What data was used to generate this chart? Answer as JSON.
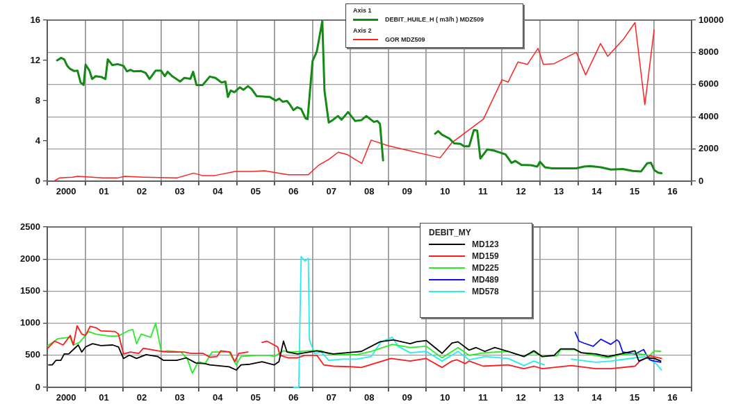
{
  "chart_data": [
    {
      "type": "line",
      "annotations": [
        "Axis 1",
        "Axis 2"
      ],
      "legend": "top",
      "grid": true,
      "xlim": [
        "2000-01-01",
        "2017-01-01"
      ],
      "xticks": [
        {
          "value": "2000-01-01",
          "label": null
        },
        {
          "value": "2000-07-01",
          "label": "2000"
        },
        {
          "value": "2001-01-01",
          "label": null
        },
        {
          "value": "2001-07-01",
          "label": "01"
        },
        {
          "value": "2002-01-01",
          "label": null
        },
        {
          "value": "2002-07-01",
          "label": "02"
        },
        {
          "value": "2003-01-01",
          "label": null
        },
        {
          "value": "2003-07-01",
          "label": "03"
        },
        {
          "value": "2004-01-01",
          "label": null
        },
        {
          "value": "2004-07-01",
          "label": "04"
        },
        {
          "value": "2005-01-01",
          "label": null
        },
        {
          "value": "2005-07-01",
          "label": "05"
        },
        {
          "value": "2006-01-01",
          "label": null
        },
        {
          "value": "2006-07-01",
          "label": "06"
        },
        {
          "value": "2007-01-01",
          "label": null
        },
        {
          "value": "2007-07-01",
          "label": "07"
        },
        {
          "value": "2008-01-01",
          "label": null
        },
        {
          "value": "2008-07-01",
          "label": "08"
        },
        {
          "value": "2009-01-01",
          "label": null
        },
        {
          "value": "2009-07-01",
          "label": "09"
        },
        {
          "value": "2010-01-01",
          "label": null
        },
        {
          "value": "2010-07-01",
          "label": "10"
        },
        {
          "value": "2011-01-01",
          "label": null
        },
        {
          "value": "2011-07-01",
          "label": "11"
        },
        {
          "value": "2012-01-01",
          "label": null
        },
        {
          "value": "2012-07-01",
          "label": "12"
        },
        {
          "value": "2013-01-01",
          "label": null
        },
        {
          "value": "2013-07-01",
          "label": "13"
        },
        {
          "value": "2014-01-01",
          "label": null
        },
        {
          "value": "2014-07-01",
          "label": "14"
        },
        {
          "value": "2015-01-01",
          "label": null
        },
        {
          "value": "2015-07-01",
          "label": "15"
        },
        {
          "value": "2016-01-01",
          "label": null
        },
        {
          "value": "2016-07-01",
          "label": "16"
        },
        {
          "value": "2017-01-01",
          "label": null
        }
      ],
      "ylim": [
        0,
        16
      ],
      "yticks": [
        0,
        4,
        8,
        12,
        16
      ],
      "y2lim": [
        0,
        10000
      ],
      "y2ticks": [
        0,
        2000,
        4000,
        6000,
        8000,
        10000
      ],
      "series": [
        {
          "name": "DEBIT_HUILE_H ( m3/h ) MDZ509",
          "color": "#138a13",
          "x": [
            "2000-04-05",
            "2000-05-14",
            "2000-06-13",
            "2000-07-12",
            "2000-08-03",
            "2000-09-17",
            "2000-10-19",
            "2000-11-18",
            "2000-12-17",
            "2001-01-05",
            "2001-02-11",
            "2001-03-09",
            "2001-04-12",
            "2001-06-09",
            "2001-07-15",
            "2001-08-07",
            "2001-09-20",
            "2001-11-11",
            "2002-01-05",
            "2002-02-07",
            "2002-03-13",
            "2002-04-15",
            "2002-06-24",
            "2002-08-07",
            "2002-09-13",
            "2002-11-11",
            "2003-01-01",
            "2003-02-07",
            "2003-03-06",
            "2003-04-19",
            "2003-07-05",
            "2003-08-14",
            "2003-10-12",
            "2003-11-07",
            "2003-12-09",
            "2004-02-07",
            "2004-04-15",
            "2004-06-09",
            "2004-08-07",
            "2004-09-13",
            "2004-10-08",
            "2004-11-03",
            "2004-12-09",
            "2005-01-30",
            "2005-03-06",
            "2005-04-19",
            "2005-05-25",
            "2005-07-12",
            "2005-09-06",
            "2005-11-14",
            "2006-01-12",
            "2006-02-14",
            "2006-03-20",
            "2006-04-30",
            "2006-05-29",
            "2006-07-01",
            "2006-08-07",
            "2006-09-13",
            "2006-10-26",
            "2006-11-14",
            "2007-01-01",
            "2007-02-11",
            "2007-04-05",
            "2007-04-26",
            "2007-06-06",
            "2007-07-19",
            "2007-09-02",
            "2007-10-08",
            "2007-12-09",
            "2008-02-14",
            "2008-04-15",
            "2008-06-02",
            "2008-08-14",
            "2008-09-17",
            "2008-10-12",
            "2008-11-11",
            "2009-07-01",
            "2010-03-27",
            "2010-04-26",
            "2010-06-02",
            "2010-08-11",
            "2010-09-27",
            "2010-11-25",
            "2011-01-01",
            "2011-02-18",
            "2011-04-05",
            "2011-05-07",
            "2011-06-06",
            "2011-08-11",
            "2011-10-19",
            "2012-02-03",
            "2012-04-01",
            "2012-05-07",
            "2012-07-05",
            "2012-10-08",
            "2012-12-06",
            "2013-01-01",
            "2013-02-18",
            "2013-04-26",
            "2013-12-17",
            "2014-02-28",
            "2014-04-26",
            "2014-08-11",
            "2014-11-14",
            "2015-03-09",
            "2015-06-13",
            "2015-09-02",
            "2015-10-30",
            "2015-12-06",
            "2016-01-08",
            "2016-02-14",
            "2016-03-17"
          ],
          "values": [
            12.0,
            12.25,
            12.1,
            11.46,
            11.2,
            10.94,
            10.99,
            9.8,
            9.56,
            11.58,
            10.99,
            10.15,
            10.43,
            10.34,
            10.15,
            12.1,
            11.53,
            11.63,
            11.46,
            10.91,
            11.06,
            10.91,
            10.94,
            10.75,
            10.15,
            10.99,
            10.99,
            10.43,
            10.87,
            10.43,
            9.9,
            10.26,
            10.18,
            10.87,
            9.56,
            9.56,
            10.39,
            10.26,
            9.8,
            9.9,
            8.37,
            9.0,
            8.84,
            9.32,
            9.08,
            9.44,
            9.15,
            8.44,
            8.41,
            8.37,
            8.01,
            8.2,
            7.89,
            7.97,
            7.59,
            7.06,
            7.34,
            7.18,
            6.23,
            6.16,
            11.94,
            12.89,
            15.91,
            8.97,
            5.82,
            6.11,
            6.47,
            6.11,
            6.87,
            5.99,
            6.06,
            6.47,
            5.89,
            5.98,
            5.69,
            2.06,
            null,
            4.72,
            4.97,
            4.61,
            4.24,
            3.76,
            3.7,
            3.46,
            3.46,
            5.09,
            5.02,
            2.25,
            3.15,
            3.03,
            2.66,
            1.82,
            2.01,
            1.62,
            1.58,
            1.45,
            1.93,
            1.38,
            1.28,
            1.28,
            1.45,
            1.5,
            1.38,
            1.16,
            1.21,
            1.02,
            0.97,
            1.77,
            1.82,
            1.09,
            0.85,
            0.8
          ]
        },
        {
          "name": "GOR MDZ509",
          "color": "#ff2020",
          "axis": "y2",
          "x": [
            "2000-03-06",
            "2000-04-26",
            "2000-09-02",
            "2000-10-19",
            "2001-06-24",
            "2001-11-07",
            "2002-01-19",
            "2002-07-15",
            "2003-06-02",
            "2003-11-11",
            "2004-02-03",
            "2004-06-02",
            "2004-12-17",
            "2005-06-02",
            "2005-09-24",
            "2006-05-11",
            "2006-11-21",
            "2007-03-02",
            "2007-06-06",
            "2007-09-06",
            "2007-12-02",
            "2008-04-19",
            "2008-07-19",
            "2009-01-01",
            "2010-05-14",
            "2010-09-06",
            "2011-07-05",
            "2012-01-01",
            "2012-02-28",
            "2012-06-02",
            "2012-09-02",
            "2012-12-13",
            "2013-02-03",
            "2013-05-18",
            "2013-12-17",
            "2014-03-17",
            "2014-08-07",
            "2014-10-15",
            "2015-03-20",
            "2015-07-05",
            "2015-10-08",
            "2016-01-05"
          ],
          "values": [
            0,
            200,
            250,
            300,
            200,
            200,
            300,
            250,
            200,
            500,
            350,
            350,
            600,
            600,
            650,
            400,
            400,
            1000,
            1350,
            1800,
            1650,
            1100,
            2550,
            2200,
            1450,
            2400,
            3850,
            6300,
            6150,
            7400,
            7250,
            8250,
            7250,
            7300,
            8000,
            6600,
            8550,
            7750,
            8850,
            9850,
            4750,
            9400
          ]
        }
      ]
    },
    {
      "type": "line",
      "legend": "top",
      "legend_title": "DEBIT_MY",
      "grid": true,
      "xlim": [
        "2000-01-01",
        "2017-01-01"
      ],
      "xticks": [
        {
          "value": "2000-01-01",
          "label": null
        },
        {
          "value": "2000-07-01",
          "label": "2000"
        },
        {
          "value": "2001-01-01",
          "label": null
        },
        {
          "value": "2001-07-01",
          "label": "01"
        },
        {
          "value": "2002-01-01",
          "label": null
        },
        {
          "value": "2002-07-01",
          "label": "02"
        },
        {
          "value": "2003-01-01",
          "label": null
        },
        {
          "value": "2003-07-01",
          "label": "03"
        },
        {
          "value": "2004-01-01",
          "label": null
        },
        {
          "value": "2004-07-01",
          "label": "04"
        },
        {
          "value": "2005-01-01",
          "label": null
        },
        {
          "value": "2005-07-01",
          "label": "05"
        },
        {
          "value": "2006-01-01",
          "label": null
        },
        {
          "value": "2006-07-01",
          "label": "06"
        },
        {
          "value": "2007-01-01",
          "label": null
        },
        {
          "value": "2007-07-01",
          "label": "07"
        },
        {
          "value": "2008-01-01",
          "label": null
        },
        {
          "value": "2008-07-01",
          "label": "08"
        },
        {
          "value": "2009-01-01",
          "label": null
        },
        {
          "value": "2009-07-01",
          "label": "09"
        },
        {
          "value": "2010-01-01",
          "label": null
        },
        {
          "value": "2010-07-01",
          "label": "10"
        },
        {
          "value": "2011-01-01",
          "label": null
        },
        {
          "value": "2011-07-01",
          "label": "11"
        },
        {
          "value": "2012-01-01",
          "label": null
        },
        {
          "value": "2012-07-01",
          "label": "12"
        },
        {
          "value": "2013-01-01",
          "label": null
        },
        {
          "value": "2013-07-01",
          "label": "13"
        },
        {
          "value": "2014-01-01",
          "label": null
        },
        {
          "value": "2014-07-01",
          "label": "14"
        },
        {
          "value": "2015-01-01",
          "label": null
        },
        {
          "value": "2015-07-01",
          "label": "15"
        },
        {
          "value": "2016-01-01",
          "label": null
        },
        {
          "value": "2016-07-01",
          "label": "16"
        },
        {
          "value": "2017-01-01",
          "label": null
        }
      ],
      "ylim": [
        0,
        2500
      ],
      "yticks": [
        0,
        500,
        1000,
        1500,
        2000,
        2500
      ],
      "series": [
        {
          "name": "MD123",
          "color": "#000000",
          "x": [
            "2000-01-15",
            "2000-02-18",
            "2000-03-24",
            "2000-05-11",
            "2000-06-13",
            "2000-07-26",
            "2000-09-09",
            "2000-10-26",
            "2000-11-29",
            "2001-01-05",
            "2001-03-13",
            "2001-06-02",
            "2001-09-24",
            "2001-11-18",
            "2002-01-05",
            "2002-03-02",
            "2002-05-11",
            "2002-08-11",
            "2002-12-02",
            "2003-01-26",
            "2003-06-02",
            "2003-09-02",
            "2003-12-02",
            "2004-03-02",
            "2004-04-15",
            "2004-10-19",
            "2004-12-27",
            "2005-02-11",
            "2005-05-07",
            "2005-09-02",
            "2005-12-27",
            "2006-02-11",
            "2006-03-27",
            "2006-04-30",
            "2006-08-11",
            "2007-02-11",
            "2007-07-19",
            "2008-04-15",
            "2008-10-12",
            "2009-02-18",
            "2009-07-30",
            "2009-09-27",
            "2010-01-01",
            "2010-06-02",
            "2010-09-06",
            "2010-11-03",
            "2011-02-18",
            "2011-04-26",
            "2011-07-19",
            "2011-10-23",
            "2012-02-28",
            "2012-07-30",
            "2012-11-03",
            "2013-01-23",
            "2013-05-18",
            "2013-07-19",
            "2013-11-25",
            "2014-02-03",
            "2014-06-24",
            "2014-10-19",
            "2015-02-14",
            "2015-07-05",
            "2015-08-11",
            "2015-10-30",
            "2016-01-08",
            "2016-03-09"
          ],
          "values": [
            350,
            350,
            420,
            420,
            520,
            520,
            590,
            660,
            550,
            630,
            680,
            650,
            660,
            630,
            450,
            500,
            450,
            510,
            480,
            420,
            420,
            460,
            380,
            370,
            350,
            320,
            270,
            350,
            360,
            400,
            350,
            400,
            720,
            550,
            520,
            570,
            520,
            560,
            710,
            740,
            680,
            710,
            730,
            530,
            690,
            710,
            580,
            620,
            560,
            620,
            560,
            480,
            570,
            480,
            500,
            600,
            600,
            540,
            520,
            480,
            520,
            570,
            410,
            460,
            450,
            410
          ]
        },
        {
          "name": "MD159",
          "color": "#ff1a1a",
          "x": [
            "2000-01-05",
            "2000-03-13",
            "2000-06-02",
            "2000-08-11",
            "2000-09-09",
            "2000-10-15",
            "2000-11-29",
            "2001-01-05",
            "2001-02-18",
            "2001-04-15",
            "2001-06-02",
            "2001-10-15",
            "2001-11-18",
            "2002-01-05",
            "2002-03-13",
            "2002-06-02",
            "2002-07-15",
            "2002-12-02",
            "2003-03-02",
            "2003-08-11",
            "2003-10-19",
            "2004-02-11",
            "2004-04-15",
            "2004-06-24",
            "2004-07-30",
            "2004-10-30",
            "2004-12-13",
            "2005-01-19",
            "2005-04-19",
            "2005-07-01",
            "2005-09-02",
            "2005-10-19",
            "2006-01-30",
            "2006-02-21",
            "2006-05-11",
            "2006-08-11",
            "2006-10-19",
            "2007-02-11",
            "2007-04-19",
            "2007-07-19",
            "2008-01-19",
            "2008-04-15",
            "2008-08-14",
            "2009-01-26",
            "2009-07-30",
            "2010-01-01",
            "2010-06-02",
            "2010-09-06",
            "2010-10-23",
            "2011-01-12",
            "2011-02-18",
            "2011-07-05",
            "2012-02-28",
            "2012-07-30",
            "2012-11-03",
            "2013-01-23",
            "2013-10-30",
            "2014-06-24",
            "2014-11-14",
            "2015-07-05",
            "2015-08-21",
            "2015-11-25",
            "2016-03-17"
          ],
          "values": [
            610,
            720,
            660,
            810,
            660,
            960,
            830,
            810,
            950,
            930,
            880,
            870,
            830,
            520,
            550,
            530,
            610,
            570,
            550,
            550,
            530,
            530,
            470,
            480,
            570,
            550,
            400,
            530,
            550,
            null,
            700,
            720,
            630,
            500,
            460,
            460,
            500,
            500,
            350,
            330,
            320,
            310,
            370,
            450,
            410,
            450,
            310,
            410,
            430,
            370,
            410,
            330,
            350,
            290,
            330,
            290,
            340,
            290,
            290,
            330,
            410,
            490,
            450
          ]
        },
        {
          "name": "MD225",
          "color": "#22ee22",
          "x": [
            "2000-01-05",
            "2000-04-15",
            "2000-08-07",
            "2000-09-09",
            "2000-11-07",
            "2001-02-03",
            "2001-04-15",
            "2001-08-21",
            "2001-11-18",
            "2002-03-02",
            "2002-04-05",
            "2002-05-11",
            "2002-06-24",
            "2002-09-24",
            "2002-11-11",
            "2003-01-05",
            "2003-03-02",
            "2003-07-15",
            "2003-09-13",
            "2003-10-30",
            "2003-12-27",
            "2004-03-02",
            "2004-05-07",
            "2004-10-19",
            "2004-12-27",
            "2005-02-11",
            "2005-07-15",
            "2005-11-11",
            "2005-12-27",
            "2006-03-27",
            "2006-06-02",
            "2006-12-02",
            "2007-03-27",
            "2007-06-06",
            "2008-03-02",
            "2008-07-19",
            "2009-02-07",
            "2009-07-30",
            "2010-01-01",
            "2010-06-02",
            "2010-11-03",
            "2011-02-18",
            "2011-07-19",
            "2012-02-28",
            "2012-07-30",
            "2012-11-03",
            "2013-01-23",
            "2013-06-13",
            "2013-07-19",
            "2013-11-25",
            "2014-02-03",
            "2014-10-19",
            "2015-02-14",
            "2015-07-05",
            "2015-11-25",
            "2016-01-08",
            "2016-03-09"
          ],
          "values": [
            650,
            760,
            780,
            660,
            700,
            870,
            830,
            800,
            800,
            890,
            900,
            680,
            830,
            780,
            1000,
            550,
            570,
            550,
            440,
            220,
            400,
            370,
            550,
            550,
            350,
            480,
            500,
            500,
            480,
            570,
            550,
            570,
            570,
            520,
            510,
            560,
            670,
            620,
            640,
            460,
            620,
            500,
            540,
            560,
            480,
            550,
            480,
            490,
            590,
            590,
            540,
            460,
            510,
            530,
            500,
            570,
            560
          ]
        },
        {
          "name": "MD489",
          "color": "#1010ee",
          "x": [
            "2013-12-06",
            "2014-01-12",
            "2014-02-28",
            "2014-05-29",
            "2014-08-11",
            "2014-11-14",
            "2015-01-12",
            "2015-02-03",
            "2015-03-09",
            "2015-04-26",
            "2015-07-05",
            "2015-09-27",
            "2015-10-19",
            "2015-11-25",
            "2016-01-08",
            "2016-03-09"
          ],
          "values": [
            860,
            720,
            690,
            640,
            750,
            670,
            740,
            710,
            550,
            540,
            520,
            590,
            520,
            430,
            410,
            390
          ]
        },
        {
          "name": "MD578",
          "color": "#22eeee",
          "x": [
            "2006-07-05",
            "2006-08-21",
            "2006-09-13",
            "2006-10-19",
            "2006-11-21",
            "2006-12-02",
            "2007-01-19",
            "2007-03-27",
            "2007-06-06",
            "2007-10-19",
            "2008-03-02",
            "2008-07-19",
            "2008-10-23",
            "2009-02-07",
            "2009-04-05",
            "2009-07-30",
            "2010-01-01",
            "2010-06-02",
            "2010-11-03",
            "2011-02-18",
            "2011-07-19",
            "2012-02-28",
            "2012-07-30",
            "2012-11-03",
            "2013-02-11",
            "2013-07-01",
            "2013-10-30",
            "2014-06-24",
            "2014-11-14",
            "2015-07-05",
            "2015-10-08",
            "2015-12-17",
            "2016-01-30",
            "2016-03-17"
          ],
          "values": [
            0,
            0,
            2040,
            1970,
            2010,
            740,
            530,
            550,
            420,
            440,
            440,
            480,
            710,
            780,
            640,
            540,
            560,
            410,
            560,
            430,
            480,
            450,
            340,
            410,
            350,
            null,
            440,
            390,
            410,
            460,
            480,
            410,
            360,
            270
          ]
        }
      ]
    }
  ]
}
